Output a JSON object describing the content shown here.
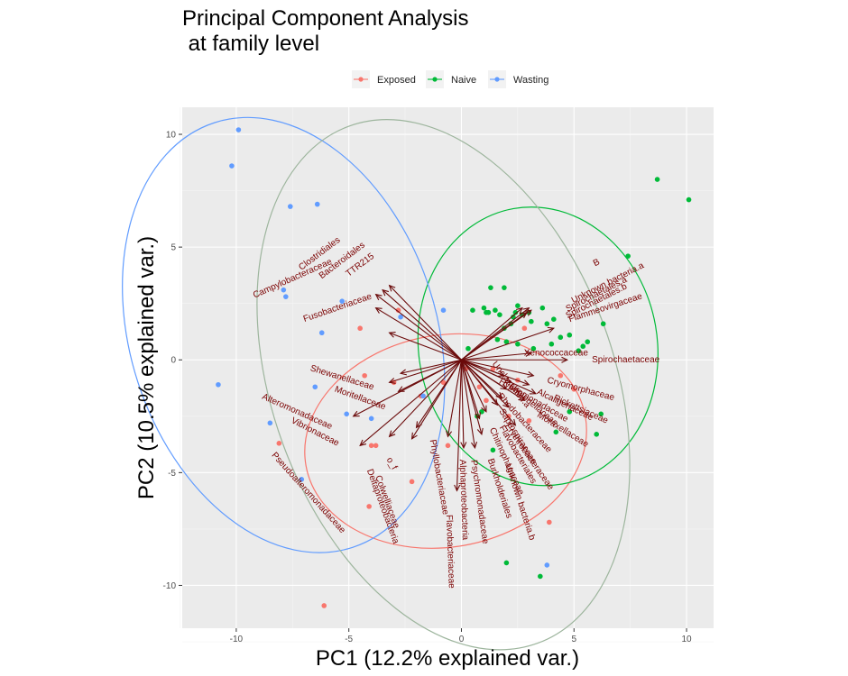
{
  "chart_data": {
    "type": "scatter",
    "title_lines": [
      "Principal Component Analysis",
      " at family level"
    ],
    "xlabel": "PC1 (12.2% explained var.)",
    "ylabel": "PC2 (10.5% explained var.)",
    "xlim": [
      -12.4,
      11.2
    ],
    "ylim": [
      -11.9,
      11.2
    ],
    "x_ticks": [
      -10,
      -5,
      0,
      5,
      10
    ],
    "y_ticks": [
      -10,
      -5,
      0,
      5,
      10
    ],
    "x_tick_labels": [
      "-10",
      "-5",
      "0",
      "5",
      "10"
    ],
    "y_tick_labels": [
      "-10",
      "-5",
      "0",
      "5",
      "10"
    ],
    "grid": true,
    "legend_position": "top",
    "series": [
      {
        "name": "Exposed",
        "color": "#F8766D",
        "points": [
          [
            -2.8,
            2.2
          ],
          [
            -4.5,
            1.4
          ],
          [
            -4.3,
            -0.7
          ],
          [
            -3.0,
            -1.0
          ],
          [
            -1.8,
            -1.6
          ],
          [
            -3.8,
            -3.8
          ],
          [
            -4.0,
            -3.8
          ],
          [
            -4.1,
            -6.5
          ],
          [
            -6.1,
            -10.9
          ],
          [
            -8.1,
            -3.7
          ],
          [
            -2.2,
            -5.4
          ],
          [
            -0.6,
            -3.8
          ],
          [
            -0.8,
            -1.0
          ],
          [
            0.2,
            -0.4
          ],
          [
            0.8,
            -1.2
          ],
          [
            1.1,
            -1.8
          ],
          [
            1.4,
            -0.4
          ],
          [
            2.5,
            -0.9
          ],
          [
            2.1,
            -2.5
          ],
          [
            3.0,
            -2.7
          ],
          [
            3.9,
            -7.2
          ],
          [
            4.4,
            -0.7
          ],
          [
            5.0,
            -1.3
          ],
          [
            2.8,
            1.4
          ]
        ]
      },
      {
        "name": "Naive",
        "color": "#00BA38",
        "points": [
          [
            8.7,
            8.0
          ],
          [
            10.1,
            7.1
          ],
          [
            7.4,
            4.6
          ],
          [
            1.3,
            3.2
          ],
          [
            1.9,
            3.2
          ],
          [
            1.1,
            2.1
          ],
          [
            1.2,
            2.1
          ],
          [
            1.5,
            2.2
          ],
          [
            1.7,
            2.0
          ],
          [
            1.0,
            2.3
          ],
          [
            0.5,
            2.2
          ],
          [
            2.3,
            1.9
          ],
          [
            2.4,
            2.1
          ],
          [
            2.7,
            2.0
          ],
          [
            3.0,
            2.1
          ],
          [
            3.1,
            1.7
          ],
          [
            2.2,
            1.6
          ],
          [
            2.5,
            2.4
          ],
          [
            3.6,
            2.3
          ],
          [
            4.1,
            1.8
          ],
          [
            3.8,
            1.6
          ],
          [
            4.0,
            0.7
          ],
          [
            4.8,
            1.1
          ],
          [
            4.4,
            1.0
          ],
          [
            5.2,
            0.4
          ],
          [
            5.4,
            0.6
          ],
          [
            6.3,
            1.6
          ],
          [
            5.6,
            0.8
          ],
          [
            1.9,
            1.4
          ],
          [
            1.6,
            0.9
          ],
          [
            0.3,
            0.5
          ],
          [
            2.0,
            0.8
          ],
          [
            2.5,
            0.7
          ],
          [
            3.2,
            0.5
          ],
          [
            4.2,
            -3.2
          ],
          [
            4.8,
            -2.3
          ],
          [
            6.0,
            -3.3
          ],
          [
            6.2,
            -2.4
          ],
          [
            2.0,
            -9.0
          ],
          [
            3.5,
            -9.6
          ],
          [
            0.7,
            -2.5
          ],
          [
            1.4,
            -4.0
          ],
          [
            0.9,
            -2.3
          ]
        ]
      },
      {
        "name": "Wasting",
        "color": "#619CFF",
        "points": [
          [
            -9.9,
            10.2
          ],
          [
            -10.2,
            8.6
          ],
          [
            -7.6,
            6.8
          ],
          [
            -6.4,
            6.9
          ],
          [
            -7.9,
            3.1
          ],
          [
            -7.8,
            2.8
          ],
          [
            -5.3,
            2.6
          ],
          [
            -6.2,
            1.2
          ],
          [
            -2.7,
            1.9
          ],
          [
            -0.8,
            2.2
          ],
          [
            -10.8,
            -1.1
          ],
          [
            -6.5,
            -1.2
          ],
          [
            -5.1,
            -2.4
          ],
          [
            -4.0,
            -2.6
          ],
          [
            -8.5,
            -2.8
          ],
          [
            -7.1,
            -5.3
          ],
          [
            3.8,
            -9.1
          ],
          [
            -1.7,
            -1.6
          ]
        ]
      }
    ],
    "ellipses": [
      {
        "group": "Exposed",
        "color": "#F8766D",
        "cx": -0.7,
        "cy": -3.6,
        "rx": 6.3,
        "ry": 4.7,
        "angle_deg": -10
      },
      {
        "group": "Naive",
        "color": "#00BA38",
        "cx": 3.4,
        "cy": 0.6,
        "rx": 5.3,
        "ry": 6.2,
        "angle_deg": -10
      },
      {
        "group": "Wasting",
        "color": "#619CFF",
        "cx": -7.9,
        "cy": 1.1,
        "rx": 6.8,
        "ry": 9.9,
        "angle_deg": -18
      },
      {
        "group": "All",
        "color": "#9DB59D",
        "cx": -0.8,
        "cy": -1.1,
        "rx": 7.6,
        "ry": 12.2,
        "angle_deg": -20
      }
    ],
    "loadings": {
      "color": "#6B0B0B",
      "origin": [
        0,
        0
      ],
      "vectors": [
        {
          "label": "Bacteroidales",
          "x": -3.2,
          "y": 3.3,
          "lx": -5.3,
          "ly": 4.4,
          "rot": 37
        },
        {
          "label": "TTR215",
          "x": -3.5,
          "y": 3.1,
          "lx": -4.5,
          "ly": 4.2,
          "rot": 37
        },
        {
          "label": "Clostridiales",
          "x": -3.8,
          "y": 2.9,
          "lx": -6.3,
          "ly": 4.7,
          "rot": 37
        },
        {
          "label": "Campylobacteraceae",
          "x": -3.8,
          "y": 2.3,
          "lx": -7.5,
          "ly": 3.6,
          "rot": 24
        },
        {
          "label": "Fusobacteriaceae",
          "x": -3.2,
          "y": 1.2,
          "lx": -5.5,
          "ly": 2.3,
          "rot": 19
        },
        {
          "label": "Shewanellaceae",
          "x": -2.7,
          "y": -0.6,
          "lx": -5.3,
          "ly": -0.8,
          "rot": -17
        },
        {
          "label": "Moritellaceae",
          "x": -3.2,
          "y": -1.0,
          "lx": -4.5,
          "ly": -1.7,
          "rot": -20
        },
        {
          "label": "Alteromonadaceae",
          "x": -2.8,
          "y": -1.4,
          "lx": -7.3,
          "ly": -2.3,
          "rot": -24
        },
        {
          "label": "Vibrionaceae",
          "x": -4.8,
          "y": -2.5,
          "lx": -6.5,
          "ly": -3.2,
          "rot": -27
        },
        {
          "label": "Pseudoalteromonadaceae",
          "x": -4.5,
          "y": -3.8,
          "lx": -6.8,
          "ly": -5.9,
          "rot": -48
        },
        {
          "label": "Deltaproteobacteria",
          "x": -3.2,
          "y": -3.4,
          "lx": -3.5,
          "ly": -6.5,
          "rot": -70
        },
        {
          "label": "Colwelliaceae",
          "x": -2.2,
          "y": -3.5,
          "lx": -3.3,
          "ly": -6.3,
          "rot": -70
        },
        {
          "label": "o_f",
          "x": -2.0,
          "y": -3.0,
          "lx": -3.1,
          "ly": -4.6,
          "rot": -60
        },
        {
          "label": "Phyllobacteriaceae",
          "x": -0.6,
          "y": -3.4,
          "lx": -1.0,
          "ly": -5.2,
          "rot": -80
        },
        {
          "label": "Flavobacteriaceae",
          "x": -0.2,
          "y": -5.8,
          "lx": -0.5,
          "ly": -8.5,
          "rot": -88
        },
        {
          "label": "Alphaproteobacteria",
          "x": 0.1,
          "y": -3.9,
          "lx": 0.1,
          "ly": -6.2,
          "rot": -88
        },
        {
          "label": "Psychromonadaceae",
          "x": 0.6,
          "y": -3.9,
          "lx": 0.8,
          "ly": -6.3,
          "rot": -82
        },
        {
          "label": "Burkholderiales",
          "x": 0.9,
          "y": -3.3,
          "lx": 1.7,
          "ly": -5.7,
          "rot": -72
        },
        {
          "label": "Chitinophagaceae",
          "x": 0.8,
          "y": -2.6,
          "lx": 2.0,
          "ly": -4.5,
          "rot": -66
        },
        {
          "label": "Flavobacteriales",
          "x": 1.1,
          "y": -2.3,
          "lx": 2.5,
          "ly": -4.2,
          "rot": -60
        },
        {
          "label": "Unknown bacteria.b",
          "x": 2.4,
          "y": -2.9,
          "lx": 2.6,
          "ly": -6.3,
          "rot": -72
        },
        {
          "label": "Saprospiraceae",
          "x": 1.6,
          "y": -2.0,
          "lx": 2.5,
          "ly": -3.4,
          "rot": -58
        },
        {
          "label": "Erythrobacteraceae",
          "x": 2.1,
          "y": -2.1,
          "lx": 3.0,
          "ly": -4.3,
          "rot": -55
        },
        {
          "label": "Rhodobacteraceae",
          "x": 1.8,
          "y": -1.7,
          "lx": 2.8,
          "ly": -2.8,
          "rot": -48
        },
        {
          "label": "Legionellaceae",
          "x": 2.0,
          "y": -1.3,
          "lx": 3.2,
          "ly": -2.0,
          "rot": -40
        },
        {
          "label": "Hyphomonadaceae",
          "x": 2.2,
          "y": -1.0,
          "lx": 3.2,
          "ly": -1.8,
          "rot": -30
        },
        {
          "label": "Moraxellaceae",
          "x": 2.8,
          "y": -1.8,
          "lx": 4.5,
          "ly": -3.1,
          "rot": -32
        },
        {
          "label": "Alcaligenaceae",
          "x": 3.0,
          "y": -1.1,
          "lx": 4.6,
          "ly": -2.0,
          "rot": -26
        },
        {
          "label": "Rickettsiaceae",
          "x": 3.3,
          "y": -1.5,
          "lx": 5.3,
          "ly": -2.2,
          "rot": -24
        },
        {
          "label": "Cryomorphaceae",
          "x": 3.2,
          "y": -0.7,
          "lx": 5.3,
          "ly": -1.3,
          "rot": -15
        },
        {
          "label": "Spirochaetaceae",
          "x": 4.7,
          "y": 0.0,
          "lx": 7.3,
          "ly": 0.0,
          "rot": 0
        },
        {
          "label": "Xenococcaceae",
          "x": 3.1,
          "y": 0.3,
          "lx": 4.2,
          "ly": 0.3,
          "rot": 0
        },
        {
          "label": "Flammeovirgaceae",
          "x": 4.1,
          "y": 1.4,
          "lx": 6.4,
          "ly": 2.3,
          "rot": 18
        },
        {
          "label": "Unknown bacteria.a",
          "x": 3.1,
          "y": 2.2,
          "lx": 6.5,
          "ly": 3.4,
          "rot": 27
        },
        {
          "label": "Spirochaetales.a",
          "x": 2.9,
          "y": 2.1,
          "lx": 6.0,
          "ly": 2.9,
          "rot": 27
        },
        {
          "label": "Spirochaetales.b",
          "x": 3.0,
          "y": 2.3,
          "lx": 6.0,
          "ly": 2.6,
          "rot": 27
        },
        {
          "label": "B",
          "x": 2.7,
          "y": 2.3,
          "lx": 6.0,
          "ly": 4.3,
          "rot": 27
        },
        {
          "label": "Unclassified.a",
          "x": 1.9,
          "y": -0.7,
          "lx": 2.2,
          "ly": -1.1,
          "rot": -52
        }
      ]
    }
  }
}
